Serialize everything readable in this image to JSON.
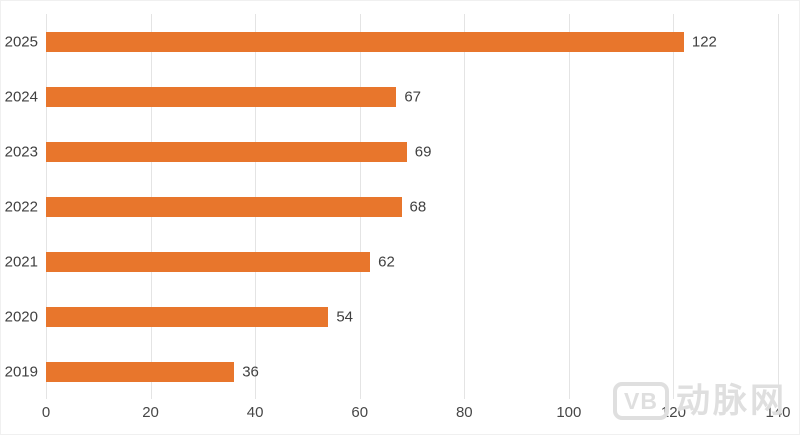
{
  "chart_data": {
    "type": "bar",
    "orientation": "horizontal",
    "title": "",
    "xlabel": "",
    "ylabel": "",
    "categories": [
      "2025",
      "2024",
      "2023",
      "2022",
      "2021",
      "2020",
      "2019"
    ],
    "values": [
      122,
      67,
      69,
      68,
      62,
      54,
      36
    ],
    "xlim": [
      0,
      140
    ],
    "x_ticks": [
      0,
      20,
      40,
      60,
      80,
      100,
      120,
      140
    ],
    "grid": true,
    "legend_position": "none",
    "bar_color": "#e8762c",
    "gridline_color": "#e4e4e4",
    "label_color": "#404040"
  },
  "watermark": {
    "logo": "VB",
    "text": "动脉网",
    "color": "#dfdfdf"
  }
}
